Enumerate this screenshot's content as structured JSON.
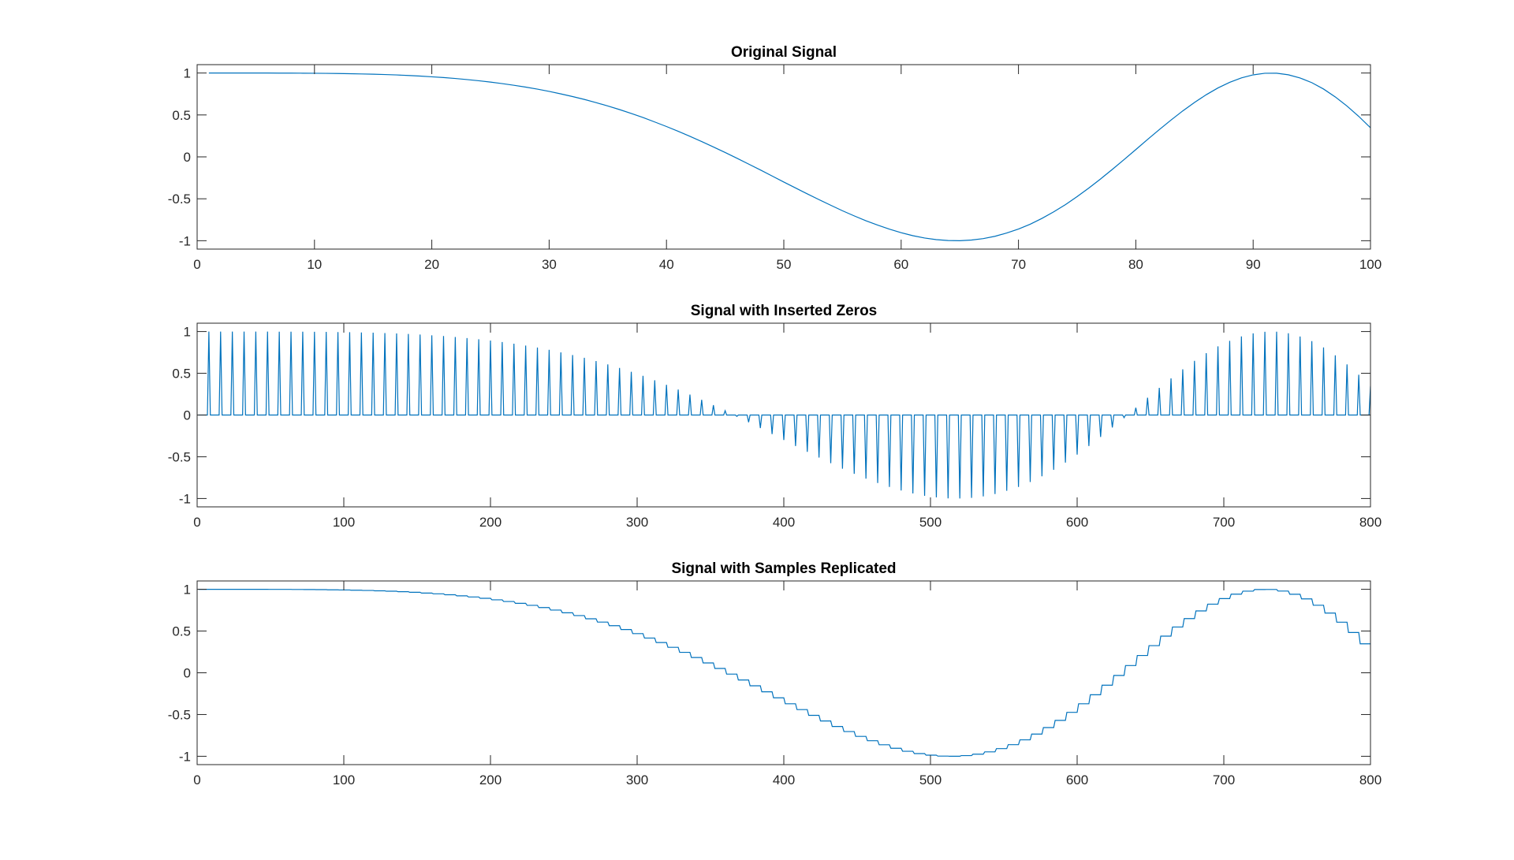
{
  "figure": {
    "line_color": "#0072BD",
    "axes_color": "#262626"
  },
  "chart_data": [
    {
      "type": "line",
      "title": "Original Signal",
      "xlim": [
        0,
        100
      ],
      "ylim": [
        -1.1,
        1.1
      ],
      "xticks": [
        0,
        10,
        20,
        30,
        40,
        50,
        60,
        70,
        80,
        90,
        100
      ],
      "yticks": [
        1,
        0.5,
        0,
        -0.5,
        -1
      ],
      "xtick_labels": [
        "0",
        "10",
        "20",
        "30",
        "40",
        "50",
        "60",
        "70",
        "80",
        "90",
        "100"
      ],
      "ytick_labels": [
        "1",
        "0.5",
        "0",
        "-0.5",
        "-1"
      ],
      "grid": false,
      "x_start": 1,
      "values": [
        1.0,
        1.0,
        1.0,
        1.0,
        1.0,
        1.0,
        0.999,
        0.999,
        0.998,
        0.997,
        0.996,
        0.994,
        0.992,
        0.989,
        0.986,
        0.982,
        0.977,
        0.971,
        0.964,
        0.955,
        0.946,
        0.935,
        0.922,
        0.908,
        0.892,
        0.874,
        0.854,
        0.832,
        0.808,
        0.781,
        0.751,
        0.719,
        0.685,
        0.647,
        0.607,
        0.564,
        0.518,
        0.469,
        0.416,
        0.362,
        0.305,
        0.245,
        0.183,
        0.118,
        0.052,
        -0.016,
        -0.086,
        -0.156,
        -0.228,
        -0.3,
        -0.371,
        -0.441,
        -0.51,
        -0.577,
        -0.643,
        -0.704,
        -0.762,
        -0.814,
        -0.862,
        -0.904,
        -0.94,
        -0.968,
        -0.987,
        -0.998,
        -1.0,
        -0.992,
        -0.975,
        -0.947,
        -0.908,
        -0.861,
        -0.803,
        -0.734,
        -0.656,
        -0.57,
        -0.474,
        -0.371,
        -0.263,
        -0.149,
        -0.032,
        0.087,
        0.207,
        0.325,
        0.439,
        0.548,
        0.649,
        0.741,
        0.822,
        0.889,
        0.942,
        0.978,
        0.997,
        0.998,
        0.979,
        0.941,
        0.885,
        0.809,
        0.715,
        0.606,
        0.483,
        0.347
      ]
    },
    {
      "type": "line",
      "title": "Signal with Inserted Zeros",
      "xlim": [
        0,
        800
      ],
      "ylim": [
        -1.1,
        1.1
      ],
      "xticks": [
        0,
        100,
        200,
        300,
        400,
        500,
        600,
        700,
        800
      ],
      "yticks": [
        1,
        0.5,
        0,
        -0.5,
        -1
      ],
      "xtick_labels": [
        "0",
        "100",
        "200",
        "300",
        "400",
        "500",
        "600",
        "700",
        "800"
      ],
      "ytick_labels": [
        "1",
        "0.5",
        "0",
        "-0.5",
        "-1"
      ],
      "grid": false,
      "derived_from": "Original Signal",
      "upsample_factor": 8,
      "method": "zero-insertion"
    },
    {
      "type": "line",
      "title": "Signal with Samples Replicated",
      "xlim": [
        0,
        800
      ],
      "ylim": [
        -1.1,
        1.1
      ],
      "xticks": [
        0,
        100,
        200,
        300,
        400,
        500,
        600,
        700,
        800
      ],
      "yticks": [
        1,
        0.5,
        0,
        -0.5,
        -1
      ],
      "xtick_labels": [
        "0",
        "100",
        "200",
        "300",
        "400",
        "500",
        "600",
        "700",
        "800"
      ],
      "ytick_labels": [
        "1",
        "0.5",
        "0",
        "-0.5",
        "-1"
      ],
      "grid": false,
      "derived_from": "Original Signal",
      "upsample_factor": 8,
      "method": "sample-replication"
    }
  ]
}
